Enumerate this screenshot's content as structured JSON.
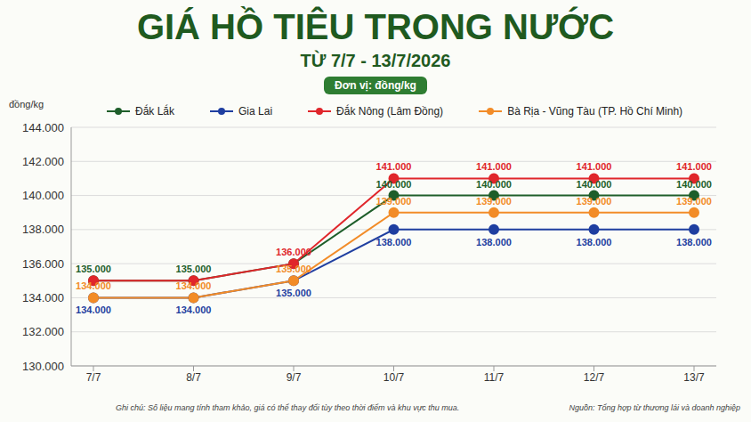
{
  "chart_data": {
    "type": "line",
    "title": "GIÁ HỒ TIÊU TRONG NƯỚC",
    "subtitle": "TỪ 7/7 - 13/7/2026",
    "unit_label": "Đơn vị: đồng/kg",
    "y_label": "đồng/kg",
    "note": "Ghi chú: Số liệu mang tính tham khảo, giá có thể thay đổi tùy theo thời điểm và khu vực thu mua.",
    "source": "Nguồn: Tổng hợp từ thương lái và doanh nghiệp",
    "categories": [
      "7/7",
      "8/7",
      "9/7",
      "10/7",
      "11/7",
      "12/7",
      "13/7"
    ],
    "series": [
      {
        "name": "Đắk Lắk",
        "color": "#1e5e2a",
        "marker": "circle",
        "values": [
          135000,
          135000,
          136000,
          140000,
          140000,
          140000,
          140000
        ],
        "value_labels": [
          "135.000",
          "135.000",
          null,
          "140.000",
          "140.000",
          "140.000",
          "140.000"
        ]
      },
      {
        "name": "Gia Lai",
        "color": "#1f3fa0",
        "marker": "circle",
        "values": [
          134000,
          134000,
          135000,
          138000,
          138000,
          138000,
          138000
        ],
        "value_labels": [
          "134.000",
          "134.000",
          "135.000",
          "138.000",
          "138.000",
          "138.000",
          "138.000"
        ]
      },
      {
        "name": "Đắk Nông (Lâm Đồng)",
        "color": "#e0262b",
        "marker": "circle",
        "values": [
          135000,
          135000,
          136000,
          141000,
          141000,
          141000,
          141000
        ],
        "value_labels": [
          null,
          null,
          "136.000",
          "141.000",
          "141.000",
          "141.000",
          "141.000"
        ]
      },
      {
        "name": "Bà Rịa - Vũng Tàu (TP. Hồ Chí Minh)",
        "color": "#f28c28",
        "marker": "circle",
        "values": [
          134000,
          134000,
          135000,
          139000,
          139000,
          139000,
          139000
        ],
        "value_labels": [
          "134.000",
          "134.000",
          "135.000",
          "139.000",
          "139.000",
          "139.000",
          "139.000"
        ]
      }
    ],
    "ylim": [
      130000,
      144000
    ],
    "yticks": [
      {
        "value": 130000,
        "label": "130.000"
      },
      {
        "value": 132000,
        "label": "132.000"
      },
      {
        "value": 134000,
        "label": "134.000"
      },
      {
        "value": 136000,
        "label": "136.000"
      },
      {
        "value": 138000,
        "label": "138.000"
      },
      {
        "value": 140000,
        "label": "140.000"
      },
      {
        "value": 142000,
        "label": "142.000"
      },
      {
        "value": 144000,
        "label": "144.000"
      }
    ],
    "grid": true,
    "legend": "top",
    "data_labels": true
  }
}
